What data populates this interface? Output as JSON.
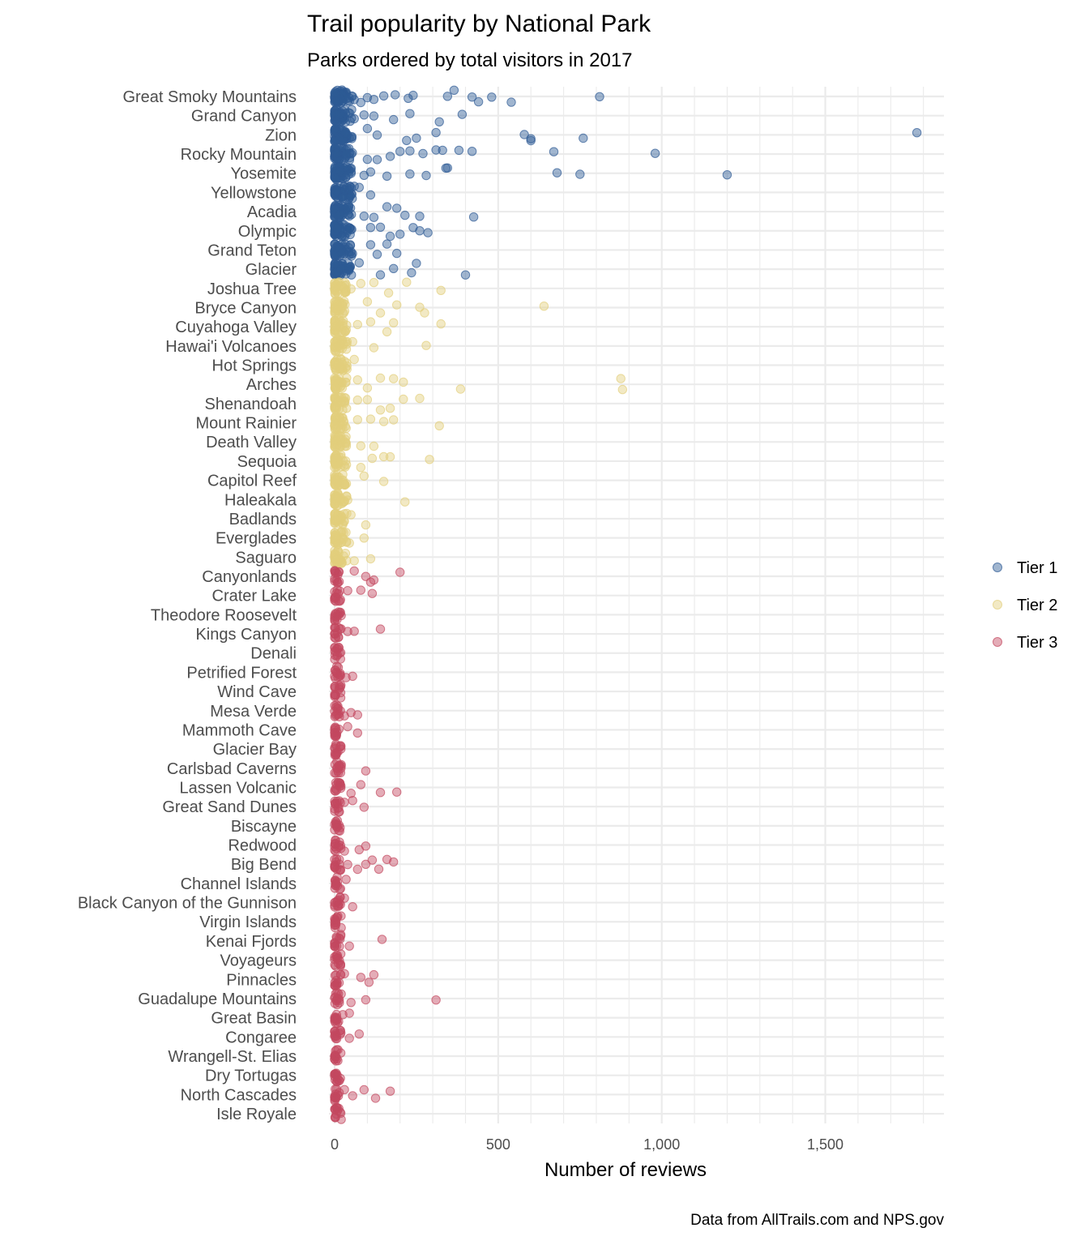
{
  "chart_data": {
    "type": "scatter",
    "title": "Trail popularity by National Park",
    "subtitle": "Parks ordered by total visitors in 2017",
    "xlabel": "Number of reviews",
    "ylabel": "",
    "caption": "Data from AllTrails.com and NPS.gov",
    "xlim": [
      0,
      1850
    ],
    "x_ticks": [
      0,
      500,
      1000,
      1500
    ],
    "x_tick_labels": [
      "0",
      "500",
      "1,000",
      "1,500"
    ],
    "grid": true,
    "legend_position": "right",
    "colors": {
      "Tier 1": "#2d5a94",
      "Tier 2": "#e2cf7c",
      "Tier 3": "#c3485f"
    },
    "categories": [
      "Great Smoky Mountains",
      "Grand Canyon",
      "Zion",
      "Rocky Mountain",
      "Yosemite",
      "Yellowstone",
      "Acadia",
      "Olympic",
      "Grand Teton",
      "Glacier",
      "Joshua Tree",
      "Bryce Canyon",
      "Cuyahoga Valley",
      "Hawai'i Volcanoes",
      "Hot Springs",
      "Arches",
      "Shenandoah",
      "Mount Rainier",
      "Death Valley",
      "Sequoia",
      "Capitol Reef",
      "Haleakala",
      "Badlands",
      "Everglades",
      "Saguaro",
      "Canyonlands",
      "Crater Lake",
      "Theodore Roosevelt",
      "Kings Canyon",
      "Denali",
      "Petrified Forest",
      "Wind Cave",
      "Mesa Verde",
      "Mammoth Cave",
      "Glacier Bay",
      "Carlsbad Caverns",
      "Lassen Volcanic",
      "Great Sand Dunes",
      "Biscayne",
      "Redwood",
      "Big Bend",
      "Channel Islands",
      "Black Canyon of the Gunnison",
      "Virgin Islands",
      "Kenai Fjords",
      "Voyageurs",
      "Pinnacles",
      "Guadalupe Mountains",
      "Great Basin",
      "Congaree",
      "Wrangell-St. Elias",
      "Dry Tortugas",
      "North Cascades",
      "Isle Royale"
    ],
    "series": [
      {
        "name": "Tier 1",
        "points": [
          [
            "Great Smoky Mountains",
            810
          ],
          [
            "Great Smoky Mountains",
            440
          ],
          [
            "Great Smoky Mountains",
            480
          ],
          [
            "Great Smoky Mountains",
            540
          ],
          [
            "Great Smoky Mountains",
            420
          ],
          [
            "Great Smoky Mountains",
            365
          ],
          [
            "Great Smoky Mountains",
            345
          ],
          [
            "Great Smoky Mountains",
            240
          ],
          [
            "Great Smoky Mountains",
            225
          ],
          [
            "Great Smoky Mountains",
            185
          ],
          [
            "Great Smoky Mountains",
            150
          ],
          [
            "Great Smoky Mountains",
            120
          ],
          [
            "Great Smoky Mountains",
            100
          ],
          [
            "Great Smoky Mountains",
            80
          ],
          [
            "Great Smoky Mountains",
            60
          ],
          [
            "Grand Canyon",
            390
          ],
          [
            "Grand Canyon",
            320
          ],
          [
            "Grand Canyon",
            230
          ],
          [
            "Grand Canyon",
            180
          ],
          [
            "Grand Canyon",
            120
          ],
          [
            "Grand Canyon",
            90
          ],
          [
            "Grand Canyon",
            60
          ],
          [
            "Zion",
            1780
          ],
          [
            "Zion",
            760
          ],
          [
            "Zion",
            600
          ],
          [
            "Zion",
            580
          ],
          [
            "Zion",
            600
          ],
          [
            "Zion",
            310
          ],
          [
            "Zion",
            250
          ],
          [
            "Zion",
            220
          ],
          [
            "Zion",
            130
          ],
          [
            "Zion",
            100
          ],
          [
            "Rocky Mountain",
            980
          ],
          [
            "Rocky Mountain",
            670
          ],
          [
            "Rocky Mountain",
            420
          ],
          [
            "Rocky Mountain",
            380
          ],
          [
            "Rocky Mountain",
            330
          ],
          [
            "Rocky Mountain",
            310
          ],
          [
            "Rocky Mountain",
            270
          ],
          [
            "Rocky Mountain",
            230
          ],
          [
            "Rocky Mountain",
            200
          ],
          [
            "Rocky Mountain",
            170
          ],
          [
            "Rocky Mountain",
            130
          ],
          [
            "Rocky Mountain",
            100
          ],
          [
            "Yosemite",
            1200
          ],
          [
            "Yosemite",
            750
          ],
          [
            "Yosemite",
            680
          ],
          [
            "Yosemite",
            345
          ],
          [
            "Yosemite",
            340
          ],
          [
            "Yosemite",
            280
          ],
          [
            "Yosemite",
            230
          ],
          [
            "Yosemite",
            160
          ],
          [
            "Yosemite",
            110
          ],
          [
            "Yosemite",
            90
          ],
          [
            "Yellowstone",
            110
          ],
          [
            "Yellowstone",
            75
          ],
          [
            "Yellowstone",
            60
          ],
          [
            "Acadia",
            425
          ],
          [
            "Acadia",
            260
          ],
          [
            "Acadia",
            215
          ],
          [
            "Acadia",
            190
          ],
          [
            "Acadia",
            160
          ],
          [
            "Acadia",
            120
          ],
          [
            "Acadia",
            90
          ],
          [
            "Olympic",
            285
          ],
          [
            "Olympic",
            260
          ],
          [
            "Olympic",
            240
          ],
          [
            "Olympic",
            200
          ],
          [
            "Olympic",
            170
          ],
          [
            "Olympic",
            140
          ],
          [
            "Olympic",
            110
          ],
          [
            "Grand Teton",
            190
          ],
          [
            "Grand Teton",
            160
          ],
          [
            "Grand Teton",
            130
          ],
          [
            "Grand Teton",
            110
          ],
          [
            "Glacier",
            400
          ],
          [
            "Glacier",
            250
          ],
          [
            "Glacier",
            235
          ],
          [
            "Glacier",
            180
          ],
          [
            "Glacier",
            140
          ],
          [
            "Glacier",
            75
          ]
        ]
      },
      {
        "name": "Tier 2",
        "points": [
          [
            "Joshua Tree",
            325
          ],
          [
            "Joshua Tree",
            220
          ],
          [
            "Joshua Tree",
            165
          ],
          [
            "Joshua Tree",
            120
          ],
          [
            "Joshua Tree",
            80
          ],
          [
            "Joshua Tree",
            50
          ],
          [
            "Bryce Canyon",
            640
          ],
          [
            "Bryce Canyon",
            275
          ],
          [
            "Bryce Canyon",
            260
          ],
          [
            "Bryce Canyon",
            190
          ],
          [
            "Bryce Canyon",
            140
          ],
          [
            "Bryce Canyon",
            100
          ],
          [
            "Cuyahoga Valley",
            325
          ],
          [
            "Cuyahoga Valley",
            180
          ],
          [
            "Cuyahoga Valley",
            160
          ],
          [
            "Cuyahoga Valley",
            110
          ],
          [
            "Cuyahoga Valley",
            70
          ],
          [
            "Hawai'i Volcanoes",
            280
          ],
          [
            "Hawai'i Volcanoes",
            120
          ],
          [
            "Hawai'i Volcanoes",
            55
          ],
          [
            "Hot Springs",
            60
          ],
          [
            "Arches",
            880
          ],
          [
            "Arches",
            875
          ],
          [
            "Arches",
            385
          ],
          [
            "Arches",
            210
          ],
          [
            "Arches",
            180
          ],
          [
            "Arches",
            140
          ],
          [
            "Arches",
            100
          ],
          [
            "Arches",
            70
          ],
          [
            "Shenandoah",
            260
          ],
          [
            "Shenandoah",
            210
          ],
          [
            "Shenandoah",
            170
          ],
          [
            "Shenandoah",
            140
          ],
          [
            "Shenandoah",
            100
          ],
          [
            "Shenandoah",
            70
          ],
          [
            "Mount Rainier",
            320
          ],
          [
            "Mount Rainier",
            180
          ],
          [
            "Mount Rainier",
            150
          ],
          [
            "Mount Rainier",
            110
          ],
          [
            "Mount Rainier",
            70
          ],
          [
            "Death Valley",
            120
          ],
          [
            "Death Valley",
            80
          ],
          [
            "Sequoia",
            290
          ],
          [
            "Sequoia",
            170
          ],
          [
            "Sequoia",
            150
          ],
          [
            "Sequoia",
            115
          ],
          [
            "Sequoia",
            80
          ],
          [
            "Capitol Reef",
            150
          ],
          [
            "Capitol Reef",
            90
          ],
          [
            "Haleakala",
            215
          ],
          [
            "Haleakala",
            40
          ],
          [
            "Badlands",
            95
          ],
          [
            "Badlands",
            50
          ],
          [
            "Everglades",
            90
          ],
          [
            "Everglades",
            45
          ],
          [
            "Saguaro",
            110
          ],
          [
            "Saguaro",
            60
          ]
        ]
      },
      {
        "name": "Tier 3",
        "points": [
          [
            "Canyonlands",
            200
          ],
          [
            "Canyonlands",
            110
          ],
          [
            "Canyonlands",
            120
          ],
          [
            "Canyonlands",
            95
          ],
          [
            "Canyonlands",
            60
          ],
          [
            "Crater Lake",
            115
          ],
          [
            "Crater Lake",
            80
          ],
          [
            "Crater Lake",
            40
          ],
          [
            "Theodore Roosevelt",
            20
          ],
          [
            "Kings Canyon",
            140
          ],
          [
            "Kings Canyon",
            60
          ],
          [
            "Kings Canyon",
            40
          ],
          [
            "Denali",
            15
          ],
          [
            "Petrified Forest",
            55
          ],
          [
            "Petrified Forest",
            35
          ],
          [
            "Wind Cave",
            15
          ],
          [
            "Mesa Verde",
            70
          ],
          [
            "Mesa Verde",
            50
          ],
          [
            "Mesa Verde",
            30
          ],
          [
            "Mammoth Cave",
            70
          ],
          [
            "Mammoth Cave",
            40
          ],
          [
            "Glacier Bay",
            10
          ],
          [
            "Carlsbad Caverns",
            95
          ],
          [
            "Carlsbad Caverns",
            20
          ],
          [
            "Lassen Volcanic",
            190
          ],
          [
            "Lassen Volcanic",
            140
          ],
          [
            "Lassen Volcanic",
            80
          ],
          [
            "Lassen Volcanic",
            50
          ],
          [
            "Great Sand Dunes",
            90
          ],
          [
            "Great Sand Dunes",
            55
          ],
          [
            "Great Sand Dunes",
            30
          ],
          [
            "Biscayne",
            10
          ],
          [
            "Redwood",
            95
          ],
          [
            "Redwood",
            75
          ],
          [
            "Redwood",
            30
          ],
          [
            "Big Bend",
            180
          ],
          [
            "Big Bend",
            160
          ],
          [
            "Big Bend",
            135
          ],
          [
            "Big Bend",
            115
          ],
          [
            "Big Bend",
            95
          ],
          [
            "Big Bend",
            70
          ],
          [
            "Big Bend",
            40
          ],
          [
            "Channel Islands",
            35
          ],
          [
            "Black Canyon of the Gunnison",
            55
          ],
          [
            "Black Canyon of the Gunnison",
            30
          ],
          [
            "Virgin Islands",
            20
          ],
          [
            "Kenai Fjords",
            145
          ],
          [
            "Kenai Fjords",
            45
          ],
          [
            "Voyageurs",
            10
          ],
          [
            "Pinnacles",
            120
          ],
          [
            "Pinnacles",
            105
          ],
          [
            "Pinnacles",
            80
          ],
          [
            "Pinnacles",
            30
          ],
          [
            "Guadalupe Mountains",
            310
          ],
          [
            "Guadalupe Mountains",
            95
          ],
          [
            "Guadalupe Mountains",
            50
          ],
          [
            "Great Basin",
            45
          ],
          [
            "Great Basin",
            25
          ],
          [
            "Congaree",
            75
          ],
          [
            "Congaree",
            45
          ],
          [
            "Wrangell-St. Elias",
            10
          ],
          [
            "Dry Tortugas",
            5
          ],
          [
            "North Cascades",
            170
          ],
          [
            "North Cascades",
            125
          ],
          [
            "North Cascades",
            90
          ],
          [
            "North Cascades",
            55
          ],
          [
            "North Cascades",
            30
          ],
          [
            "Isle Royale",
            20
          ]
        ]
      }
    ]
  }
}
